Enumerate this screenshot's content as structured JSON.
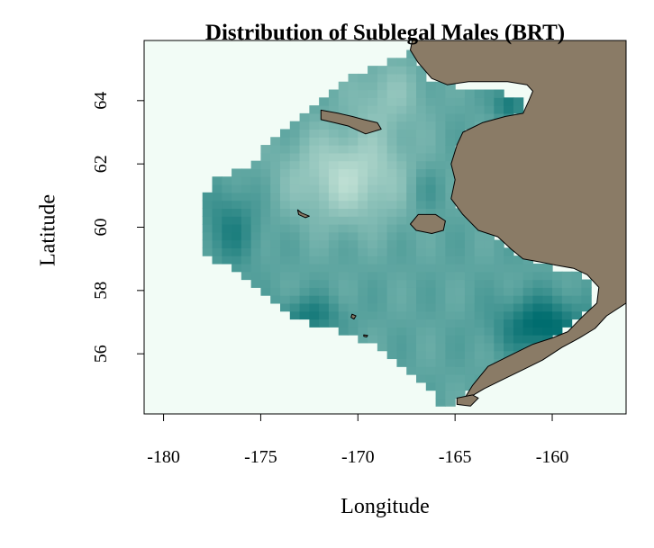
{
  "chart_data": {
    "type": "heatmap",
    "title": "Distribution of Sublegal Males (BRT)",
    "xlabel": "Longitude",
    "ylabel": "Latitude",
    "xlim": [
      -181.0,
      -156.2
    ],
    "ylim": [
      54.1,
      65.9
    ],
    "x_ticks": [
      {
        "value": -180,
        "label": "-180"
      },
      {
        "value": -175,
        "label": "-175"
      },
      {
        "value": -170,
        "label": "-170"
      },
      {
        "value": -165,
        "label": "-165"
      },
      {
        "value": -160,
        "label": "-160"
      }
    ],
    "y_ticks": [
      {
        "value": 56,
        "label": "56"
      },
      {
        "value": 58,
        "label": "58"
      },
      {
        "value": 60,
        "label": "60"
      },
      {
        "value": 62,
        "label": "62"
      },
      {
        "value": 64,
        "label": "64"
      }
    ],
    "colors": {
      "background_ocean": "#f2fcf6",
      "low": "#cfe9dc",
      "high": "#006d6f",
      "land": "#8a7b66",
      "land_border": "#000000"
    },
    "land_areas": [
      {
        "name": "Alaska mainland",
        "outline": [
          [
            -167.2,
            65.9
          ],
          [
            -156.2,
            65.9
          ],
          [
            -156.2,
            57.6
          ],
          [
            -157.2,
            57.2
          ],
          [
            -157.8,
            56.8
          ],
          [
            -158.6,
            56.5
          ],
          [
            -159.5,
            56.2
          ],
          [
            -160.5,
            55.8
          ],
          [
            -161.5,
            55.5
          ],
          [
            -162.5,
            55.2
          ],
          [
            -163.5,
            54.9
          ],
          [
            -164.6,
            54.5
          ],
          [
            -164.1,
            55.0
          ],
          [
            -163.3,
            55.6
          ],
          [
            -162.0,
            56.0
          ],
          [
            -161.0,
            56.3
          ],
          [
            -160.0,
            56.5
          ],
          [
            -159.2,
            56.7
          ],
          [
            -158.4,
            57.2
          ],
          [
            -157.7,
            57.6
          ],
          [
            -157.6,
            58.1
          ],
          [
            -158.2,
            58.5
          ],
          [
            -158.9,
            58.7
          ],
          [
            -159.8,
            58.8
          ],
          [
            -160.6,
            58.9
          ],
          [
            -161.5,
            59.0
          ],
          [
            -162.1,
            59.3
          ],
          [
            -162.8,
            59.7
          ],
          [
            -163.8,
            59.9
          ],
          [
            -164.6,
            60.4
          ],
          [
            -165.2,
            60.9
          ],
          [
            -165.0,
            61.5
          ],
          [
            -165.2,
            62.0
          ],
          [
            -164.9,
            62.6
          ],
          [
            -164.6,
            63.0
          ],
          [
            -163.6,
            63.3
          ],
          [
            -162.4,
            63.5
          ],
          [
            -161.5,
            63.6
          ],
          [
            -161.2,
            64.0
          ],
          [
            -161.0,
            64.3
          ],
          [
            -161.3,
            64.5
          ],
          [
            -162.3,
            64.6
          ],
          [
            -163.2,
            64.6
          ],
          [
            -164.3,
            64.6
          ],
          [
            -165.4,
            64.5
          ],
          [
            -166.2,
            64.7
          ],
          [
            -166.9,
            65.2
          ],
          [
            -167.3,
            65.6
          ]
        ]
      },
      {
        "name": "St. Lawrence Island",
        "outline": [
          [
            -171.9,
            63.7
          ],
          [
            -171.0,
            63.6
          ],
          [
            -170.3,
            63.5
          ],
          [
            -169.7,
            63.4
          ],
          [
            -169.0,
            63.3
          ],
          [
            -168.8,
            63.1
          ],
          [
            -169.6,
            62.95
          ],
          [
            -170.5,
            63.2
          ],
          [
            -171.2,
            63.3
          ],
          [
            -171.9,
            63.4
          ]
        ]
      },
      {
        "name": "Nunivak Island",
        "outline": [
          [
            -166.9,
            60.4
          ],
          [
            -166.0,
            60.4
          ],
          [
            -165.5,
            60.2
          ],
          [
            -165.6,
            59.9
          ],
          [
            -166.2,
            59.8
          ],
          [
            -167.0,
            59.9
          ],
          [
            -167.3,
            60.1
          ]
        ]
      },
      {
        "name": "St. Matthew Island",
        "outline": [
          [
            -173.1,
            60.55
          ],
          [
            -172.9,
            60.45
          ],
          [
            -172.5,
            60.35
          ],
          [
            -172.7,
            60.3
          ],
          [
            -173.05,
            60.4
          ]
        ]
      },
      {
        "name": "St. Paul Island",
        "outline": [
          [
            -170.3,
            57.25
          ],
          [
            -170.1,
            57.2
          ],
          [
            -170.2,
            57.1
          ],
          [
            -170.35,
            57.15
          ]
        ]
      },
      {
        "name": "St. George Island",
        "outline": [
          [
            -169.7,
            56.6
          ],
          [
            -169.5,
            56.58
          ],
          [
            -169.55,
            56.53
          ],
          [
            -169.7,
            56.55
          ]
        ]
      },
      {
        "name": "Unimak Island",
        "outline": [
          [
            -164.9,
            54.6
          ],
          [
            -164.1,
            54.7
          ],
          [
            -163.8,
            54.6
          ],
          [
            -164.2,
            54.35
          ],
          [
            -164.9,
            54.4
          ]
        ]
      }
    ]
  }
}
